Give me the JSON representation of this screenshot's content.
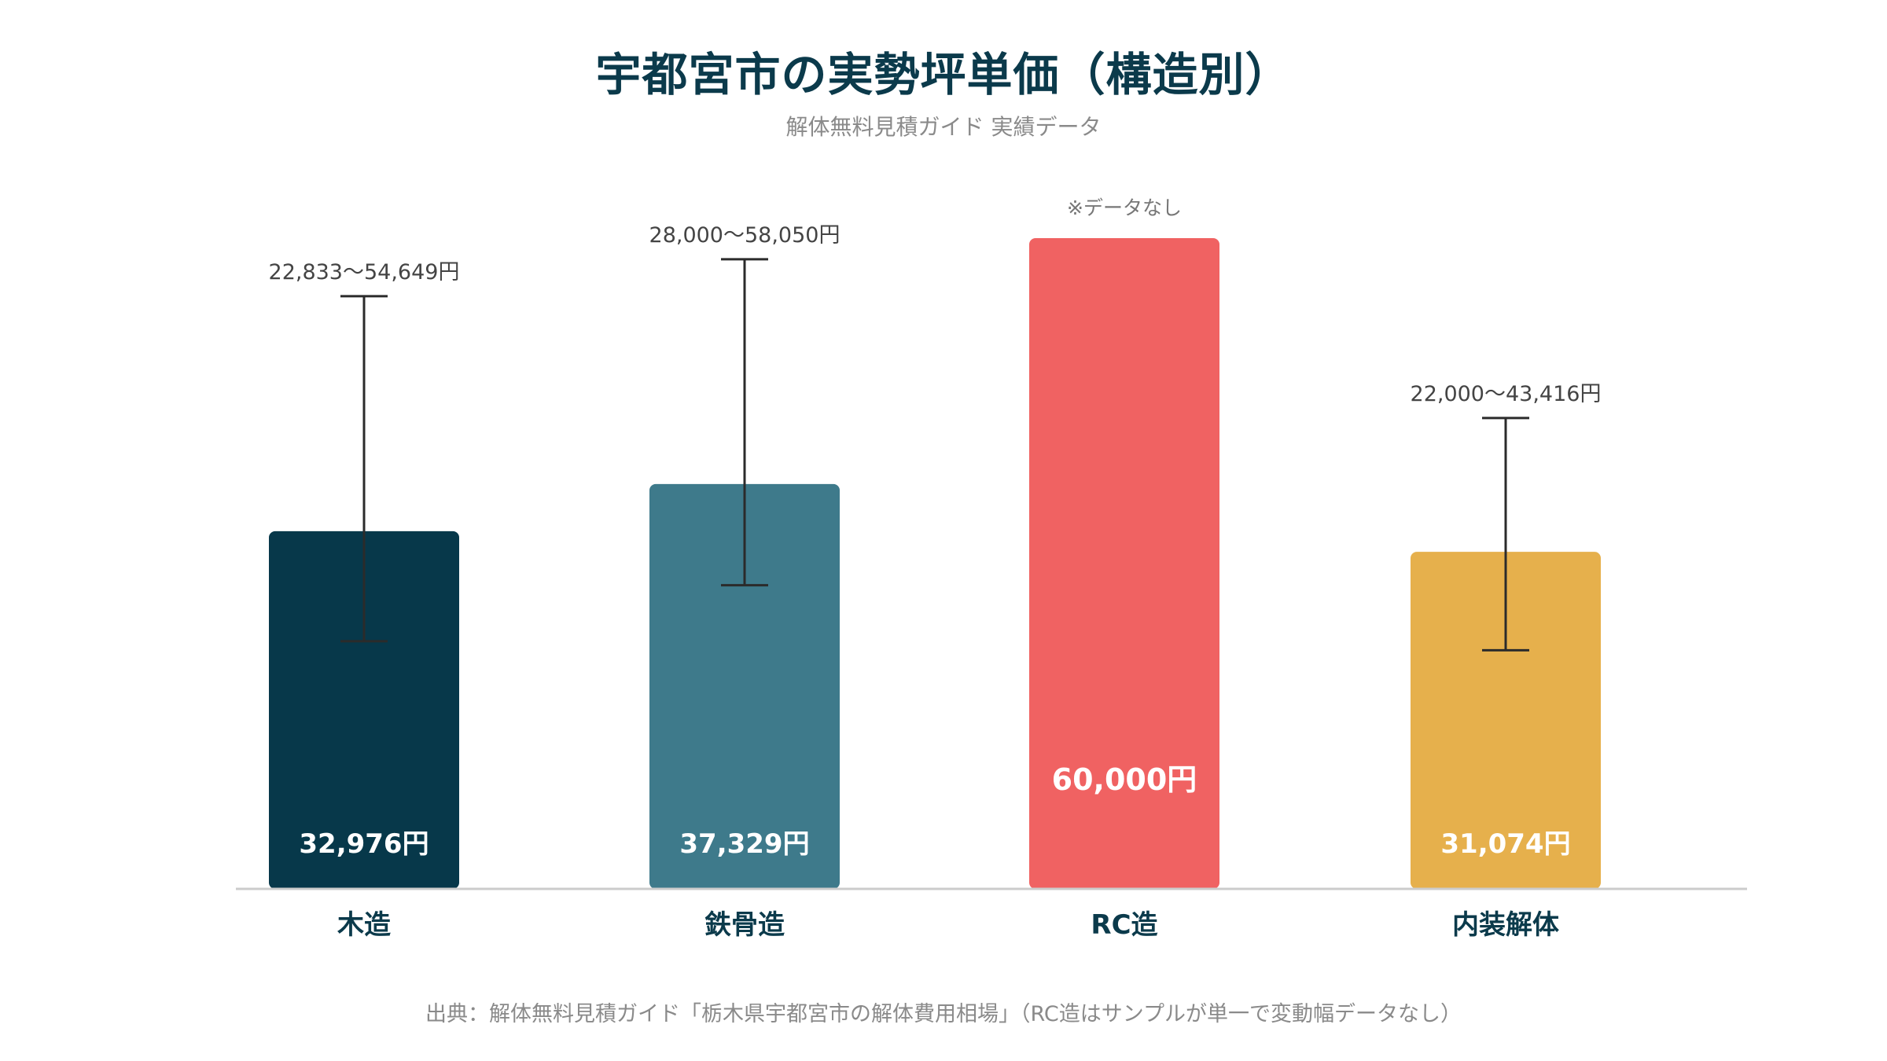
{
  "header": {
    "title": "宇都宮市の実勢坪単価（構造別）",
    "subtitle": "解体無料見積ガイド 実績データ"
  },
  "footnote": "出典：解体無料見積ガイド「栃木県宇都宮市の解体費用相場」（RC造はサンプルが単一で変動幅データなし）",
  "colors": {
    "wood": "#07384a",
    "steel": "#3e7a8b",
    "rc": "#f06262",
    "interior": "#e6b04c",
    "axis": "#cccccc",
    "errorbar": "#2b2b2b",
    "category_label": "#0b3a4b",
    "annotation": "#444444",
    "nodata_note": "#777777"
  },
  "chart_data": {
    "type": "bar",
    "categories": [
      "木造",
      "鉄骨造",
      "RC造",
      "内装解体"
    ],
    "values": [
      32976,
      37329,
      60000,
      31074
    ],
    "value_labels": [
      "32,976円",
      "37,329円",
      "60,000円",
      "31,074円"
    ],
    "range_low": [
      22833,
      28000,
      null,
      22000
    ],
    "range_high": [
      54649,
      58050,
      null,
      43416
    ],
    "range_labels": [
      "22,833〜54,649円",
      "28,000〜58,050円",
      "",
      "22,000〜43,416円"
    ],
    "notes": [
      "",
      "",
      "※データなし",
      ""
    ],
    "bar_colors": [
      "#07384a",
      "#3e7a8b",
      "#f06262",
      "#e6b04c"
    ],
    "ylim": [
      0,
      60000
    ],
    "title": "宇都宮市の実勢坪単価（構造別）",
    "xlabel": "",
    "ylabel": "",
    "grid": false,
    "legend": "none"
  }
}
